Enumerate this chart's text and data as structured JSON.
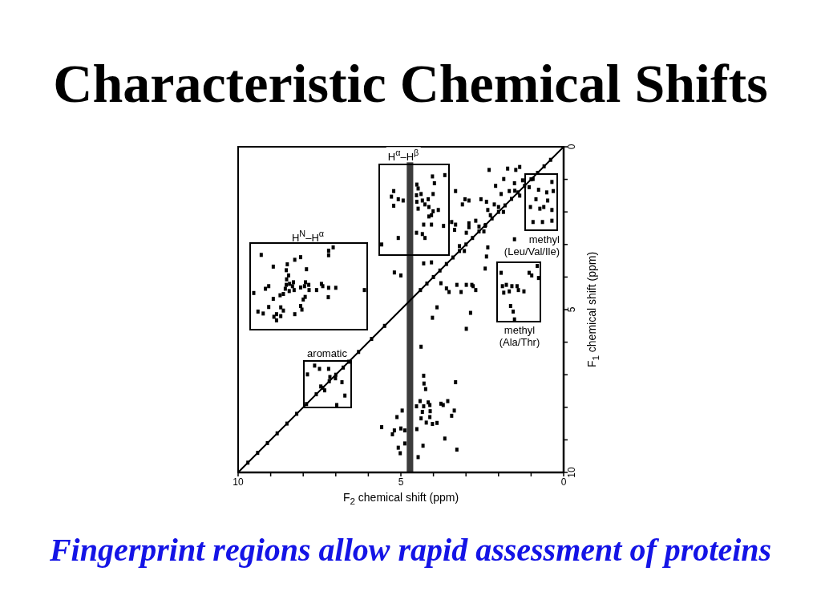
{
  "chart_data": {
    "type": "scatter",
    "title": "Characteristic Chemical Shifts",
    "xlabel": "F$_{2}$ chemical shift (ppm)",
    "ylabel": "F$_{1}$ chemical shift (ppm)",
    "xlim": [
      10,
      0
    ],
    "ylim": [
      10,
      0
    ],
    "xticks": [
      10,
      {
        "value": 9,
        "label": null
      },
      {
        "value": 8,
        "label": null
      },
      {
        "value": 7,
        "label": null
      },
      {
        "value": 6,
        "label": null
      },
      5,
      {
        "value": 4,
        "label": null
      },
      {
        "value": 3,
        "label": null
      },
      {
        "value": 2,
        "label": null
      },
      {
        "value": 1,
        "label": null
      },
      0
    ],
    "yticks": [
      0,
      {
        "value": 1,
        "label": null
      },
      {
        "value": 2,
        "label": null
      },
      {
        "value": 3,
        "label": null
      },
      {
        "value": 4,
        "label": null
      },
      5,
      {
        "value": 6,
        "label": null
      },
      {
        "value": 7,
        "label": null
      },
      {
        "value": 8,
        "label": null
      },
      {
        "value": 9,
        "label": null
      },
      10
    ],
    "bands": [
      {
        "axis": "x",
        "from": 4.62,
        "to": 4.82,
        "color": "#3c3c3c"
      }
    ],
    "series": [
      {
        "color": "#000000",
        "marker": "square",
        "x": [
          9.29,
          8.92,
          8.26,
          8.08,
          7.9,
          7.22,
          7.08,
          7.22,
          8.49,
          8.52,
          8.45,
          8.51,
          8.52,
          8.42,
          8.33,
          8.28,
          8.55,
          9.16,
          9.06,
          9.52,
          8.71,
          8.61,
          8.43,
          8.3,
          8.08,
          7.96,
          7.93,
          7.83,
          7.82,
          7.94,
          8.0,
          7.59,
          7.44,
          7.4,
          7.22,
          7.23,
          7.0,
          6.12,
          8.08,
          8.04,
          8.26,
          8.69,
          8.61,
          8.82,
          9.06,
          9.39,
          9.23,
          8.92,
          8.9,
          8.82,
          8.69,
          5.22,
          5.29,
          5.22,
          5.08,
          4.93,
          4.51,
          4.47,
          4.52,
          4.38,
          4.51,
          4.34,
          4.47,
          4.26,
          4.16,
          4.14,
          4.01,
          4.01,
          4.06,
          3.85,
          3.97,
          4.03,
          3.65,
          4.3,
          4.34,
          4.26,
          5.08,
          5.59,
          4.06,
          3.69,
          4.14,
          4.52,
          3.03,
          3.32,
          2.91,
          3.11,
          3.44,
          3.32,
          3.35,
          2.91,
          4.3,
          4.06,
          5.0,
          5.2,
          3.77,
          3.6,
          3.28,
          3.52,
          3.15,
          2.82,
          3.89,
          2.29,
          2.09,
          1.84,
          1.72,
          1.47,
          1.35,
          1.51,
          1.26,
          1.67,
          1.92,
          2.37,
          2.54,
          2.13,
          2.33,
          2.25,
          2.7,
          2.91,
          1.06,
          0.94,
          0.77,
          0.36,
          0.52,
          0.32,
          1.02,
          0.73,
          0.36,
          0.61,
          0.94,
          0.65,
          0.36,
          0.85,
          0.49,
          2.41,
          2.33,
          2.37,
          2.41,
          2.99,
          1.51,
          2.78,
          2.7,
          2.99,
          1.88,
          1.76,
          1.59,
          1.43,
          1.84,
          1.67,
          1.39,
          1.06,
          0.98,
          0.81,
          0.77,
          1.92,
          1.63,
          1.55,
          1.51,
          1.22,
          2.86,
          2.99,
          5.59,
          5.26,
          5.2,
          5.12,
          4.96,
          5.0,
          4.88,
          5.08,
          5.02,
          4.88,
          4.51,
          4.47,
          4.38,
          4.3,
          4.29,
          4.24,
          4.41,
          4.3,
          4.16,
          4.11,
          4.52,
          4.34,
          4.1,
          4.11,
          4.38,
          4.22,
          4.03,
          3.89,
          3.77,
          3.7,
          3.56,
          3.36,
          3.44,
          3.32,
          4.32,
          3.65,
          3.28,
          4.03,
          7.65,
          7.5,
          7.22,
          7.18,
          6.81,
          6.77,
          7.46,
          7.34,
          7.01,
          6.72,
          6.97,
          7.87,
          9.7,
          9.4,
          9.1,
          8.8,
          8.5,
          8.2,
          7.9,
          7.6,
          7.4,
          7.2,
          7.0,
          6.6,
          6.3,
          5.9,
          5.5,
          4.4,
          4.2,
          4.0,
          3.8,
          3.6,
          3.4,
          3.2,
          3.0,
          2.8,
          2.6,
          2.4,
          2.2,
          2.0,
          1.8,
          1.6,
          1.4,
          1.2,
          1.0,
          0.8,
          0.6,
          0.4,
          2.0,
          1.85,
          2.6,
          2.45,
          1.5,
          1.35,
          3.2,
          3.05
        ],
        "values": [
          3.32,
          3.68,
          3.47,
          3.39,
          3.76,
          3.19,
          3.09,
          3.33,
          3.61,
          3.79,
          3.95,
          4.07,
          4.24,
          4.21,
          4.28,
          4.4,
          4.36,
          4.36,
          4.28,
          4.49,
          4.56,
          4.52,
          4.43,
          4.16,
          4.32,
          4.28,
          4.16,
          4.24,
          4.4,
          4.61,
          4.69,
          4.4,
          4.21,
          4.28,
          4.33,
          4.62,
          4.33,
          4.4,
          4.89,
          5.0,
          5.14,
          4.93,
          5.03,
          5.14,
          4.92,
          5.06,
          5.12,
          4.67,
          5.22,
          5.33,
          5.2,
          1.36,
          1.53,
          1.81,
          1.61,
          1.65,
          1.16,
          1.28,
          1.49,
          1.45,
          1.69,
          1.65,
          1.9,
          1.77,
          1.61,
          1.85,
          1.45,
          1.98,
          2.1,
          1.94,
          1.12,
          0.91,
          0.87,
          2.39,
          2.68,
          2.8,
          2.8,
          3.0,
          2.39,
          2.43,
          2.14,
          2.64,
          1.61,
          1.36,
          1.65,
          1.77,
          2.31,
          2.39,
          2.55,
          2.47,
          3.58,
          3.55,
          3.95,
          3.86,
          4.19,
          4.35,
          4.24,
          4.46,
          4.46,
          4.24,
          4.93,
          0.71,
          1.2,
          0.99,
          0.67,
          0.71,
          0.62,
          1.12,
          1.03,
          1.36,
          1.45,
          1.69,
          1.61,
          1.77,
          1.94,
          2.1,
          2.27,
          2.35,
          1.24,
          0.99,
          1.32,
          1.08,
          1.4,
          1.36,
          1.85,
          1.9,
          1.94,
          1.85,
          2.31,
          2.31,
          2.27,
          1.61,
          1.65,
          2.43,
          3.09,
          3.37,
          3.74,
          2.64,
          2.84,
          4.28,
          4.4,
          4.24,
          4.28,
          4.24,
          4.28,
          4.28,
          4.48,
          4.44,
          4.4,
          3.87,
          3.95,
          3.66,
          4.03,
          3.87,
          4.89,
          5.06,
          5.3,
          4.44,
          5.1,
          5.59,
          8.61,
          8.83,
          8.71,
          8.3,
          8.1,
          8.65,
          8.71,
          9.24,
          9.41,
          9.11,
          8.67,
          9.53,
          6.14,
          7.03,
          7.27,
          7.44,
          7.81,
          7.97,
          7.85,
          7.93,
          7.97,
          8.14,
          8.12,
          8.3,
          8.34,
          8.47,
          8.51,
          8.48,
          7.89,
          7.93,
          7.81,
          8.1,
          8.26,
          7.23,
          9.18,
          8.96,
          9.3,
          5.25,
          6.72,
          6.82,
          6.82,
          7.07,
          7.23,
          6.78,
          7.36,
          7.48,
          7.11,
          7.64,
          7.93,
          6.99,
          9.7,
          9.4,
          9.1,
          8.8,
          8.5,
          8.2,
          7.9,
          7.6,
          7.4,
          7.2,
          7.0,
          6.6,
          6.3,
          5.9,
          5.5,
          4.4,
          4.2,
          4.0,
          3.8,
          3.6,
          3.4,
          3.2,
          3.0,
          2.8,
          2.6,
          2.4,
          2.2,
          2.0,
          1.8,
          1.6,
          1.4,
          1.2,
          1.0,
          0.8,
          0.6,
          0.4,
          1.85,
          2.0,
          2.45,
          2.6,
          1.35,
          1.5,
          3.05,
          3.2
        ]
      },
      {
        "type": "line",
        "color": "#000000",
        "x": [
          10,
          0
        ],
        "values": [
          10,
          0
        ]
      }
    ],
    "annotations": [
      "H$^{α}$–H$^{β}$",
      "H$^{N}$–H$^{α}$",
      "aromatic",
      "methyl\n(Leu/Val/Ile)",
      "methyl\n(Ala/Thr)",
      "Fingerprint regions allow rapid assessment of proteins"
    ]
  }
}
